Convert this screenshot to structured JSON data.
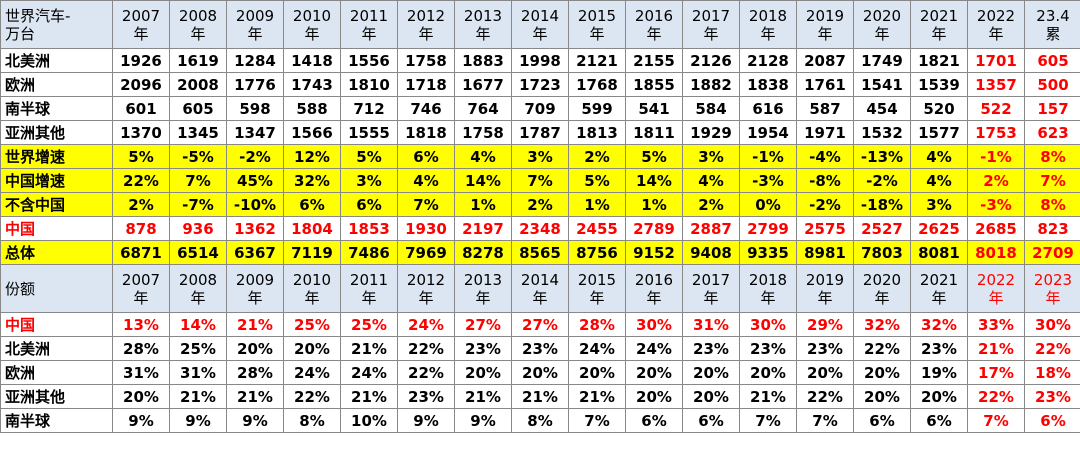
{
  "table": {
    "header": [
      [
        "世界汽车-",
        "万台"
      ],
      [
        "2007",
        "年"
      ],
      [
        "2008",
        "年"
      ],
      [
        "2009",
        "年"
      ],
      [
        "2010",
        "年"
      ],
      [
        "2011",
        "年"
      ],
      [
        "2012",
        "年"
      ],
      [
        "2013",
        "年"
      ],
      [
        "2014",
        "年"
      ],
      [
        "2015",
        "年"
      ],
      [
        "2016",
        "年"
      ],
      [
        "2017",
        "年"
      ],
      [
        "2018",
        "年"
      ],
      [
        "2019",
        "年"
      ],
      [
        "2020",
        "年"
      ],
      [
        "2021",
        "年"
      ],
      [
        "2022",
        "年"
      ],
      [
        "23.4",
        "累"
      ]
    ],
    "rows": [
      {
        "label": "北美洲",
        "cells": [
          "1926",
          "1619",
          "1284",
          "1418",
          "1556",
          "1758",
          "1883",
          "1998",
          "2121",
          "2155",
          "2126",
          "2128",
          "2087",
          "1749",
          "1821",
          "1701",
          "605"
        ]
      },
      {
        "label": "欧洲",
        "cells": [
          "2096",
          "2008",
          "1776",
          "1743",
          "1810",
          "1718",
          "1677",
          "1723",
          "1768",
          "1855",
          "1882",
          "1838",
          "1761",
          "1541",
          "1539",
          "1357",
          "500"
        ]
      },
      {
        "label": "南半球",
        "cells": [
          "601",
          "605",
          "598",
          "588",
          "712",
          "746",
          "764",
          "709",
          "599",
          "541",
          "584",
          "616",
          "587",
          "454",
          "520",
          "522",
          "157"
        ]
      },
      {
        "label": "亚洲其他",
        "cells": [
          "1370",
          "1345",
          "1347",
          "1566",
          "1555",
          "1818",
          "1758",
          "1787",
          "1813",
          "1811",
          "1929",
          "1954",
          "1971",
          "1532",
          "1577",
          "1753",
          "623"
        ]
      },
      {
        "label": "世界增速",
        "cells": [
          "5%",
          "-5%",
          "-2%",
          "12%",
          "5%",
          "6%",
          "4%",
          "3%",
          "2%",
          "5%",
          "3%",
          "-1%",
          "-4%",
          "-13%",
          "4%",
          "-1%",
          "8%"
        ]
      },
      {
        "label": "中国增速",
        "cells": [
          "22%",
          "7%",
          "45%",
          "32%",
          "3%",
          "4%",
          "14%",
          "7%",
          "5%",
          "14%",
          "4%",
          "-3%",
          "-8%",
          "-2%",
          "4%",
          "2%",
          "7%"
        ]
      },
      {
        "label": "不含中国",
        "cells": [
          "2%",
          "-7%",
          "-10%",
          "6%",
          "6%",
          "7%",
          "1%",
          "2%",
          "1%",
          "1%",
          "2%",
          "0%",
          "-2%",
          "-18%",
          "3%",
          "-3%",
          "8%"
        ]
      },
      {
        "label": "中国",
        "cells": [
          "878",
          "936",
          "1362",
          "1804",
          "1853",
          "1930",
          "2197",
          "2348",
          "2455",
          "2789",
          "2887",
          "2799",
          "2575",
          "2527",
          "2625",
          "2685",
          "823"
        ]
      },
      {
        "label": "总体",
        "cells": [
          "6871",
          "6514",
          "6367",
          "7119",
          "7486",
          "7969",
          "8278",
          "8565",
          "8756",
          "9152",
          "9408",
          "9335",
          "8981",
          "7803",
          "8081",
          "8018",
          "2709"
        ]
      }
    ]
  },
  "share_table": {
    "header": [
      [
        "份额"
      ],
      [
        "2007",
        "年"
      ],
      [
        "2008",
        "年"
      ],
      [
        "2009",
        "年"
      ],
      [
        "2010",
        "年"
      ],
      [
        "2011",
        "年"
      ],
      [
        "2012",
        "年"
      ],
      [
        "2013",
        "年"
      ],
      [
        "2014",
        "年"
      ],
      [
        "2015",
        "年"
      ],
      [
        "2016",
        "年"
      ],
      [
        "2017",
        "年"
      ],
      [
        "2018",
        "年"
      ],
      [
        "2019",
        "年"
      ],
      [
        "2020",
        "年"
      ],
      [
        "2021",
        "年"
      ],
      [
        "2022",
        "年"
      ],
      [
        "2023",
        "年"
      ]
    ],
    "rows": [
      {
        "label": "中国",
        "cells": [
          "13%",
          "14%",
          "21%",
          "25%",
          "25%",
          "24%",
          "27%",
          "27%",
          "28%",
          "30%",
          "31%",
          "30%",
          "29%",
          "32%",
          "32%",
          "33%",
          "30%"
        ]
      },
      {
        "label": "北美洲",
        "cells": [
          "28%",
          "25%",
          "20%",
          "20%",
          "21%",
          "22%",
          "23%",
          "23%",
          "24%",
          "24%",
          "23%",
          "23%",
          "23%",
          "22%",
          "23%",
          "21%",
          "22%"
        ]
      },
      {
        "label": "欧洲",
        "cells": [
          "31%",
          "31%",
          "28%",
          "24%",
          "24%",
          "22%",
          "20%",
          "20%",
          "20%",
          "20%",
          "20%",
          "20%",
          "20%",
          "20%",
          "19%",
          "17%",
          "18%"
        ]
      },
      {
        "label": "亚洲其他",
        "cells": [
          "20%",
          "21%",
          "21%",
          "22%",
          "21%",
          "23%",
          "21%",
          "21%",
          "21%",
          "20%",
          "20%",
          "21%",
          "22%",
          "20%",
          "20%",
          "22%",
          "23%"
        ]
      },
      {
        "label": "南半球",
        "cells": [
          "9%",
          "9%",
          "9%",
          "8%",
          "10%",
          "9%",
          "9%",
          "8%",
          "7%",
          "6%",
          "6%",
          "7%",
          "7%",
          "6%",
          "6%",
          "7%",
          "6%"
        ]
      }
    ]
  }
}
